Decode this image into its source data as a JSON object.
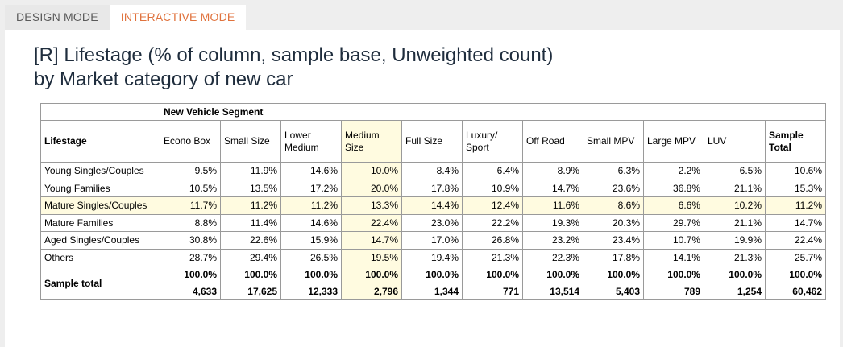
{
  "tabs": [
    {
      "label": "DESIGN MODE",
      "active": false
    },
    {
      "label": "INTERACTIVE MODE",
      "active": true
    }
  ],
  "title": {
    "line1": "[R] Lifestage (% of column, sample base, Unweighted count)",
    "line2": "by Market category of new car"
  },
  "colors": {
    "active_tab": "#e0723c",
    "highlight": "#fffbe0",
    "title": "#1f2d3d"
  },
  "table": {
    "group_header": "New Vehicle Segment",
    "row_header": "Lifestage",
    "columns": [
      "Econo Box",
      "Small Size",
      "Lower Medium",
      "Medium Size",
      "Full Size",
      "Luxury/ Sport",
      "Off Road",
      "Small MPV",
      "Large MPV",
      "LUV",
      "Sample Total"
    ],
    "rows": [
      {
        "label": "Young Singles/Couples",
        "values": [
          "9.5%",
          "11.9%",
          "14.6%",
          "10.0%",
          "8.4%",
          "6.4%",
          "8.9%",
          "6.3%",
          "2.2%",
          "6.5%",
          "10.6%"
        ]
      },
      {
        "label": "Young Families",
        "values": [
          "10.5%",
          "13.5%",
          "17.2%",
          "20.0%",
          "17.8%",
          "10.9%",
          "14.7%",
          "23.6%",
          "36.8%",
          "21.1%",
          "15.3%"
        ]
      },
      {
        "label": "Mature Singles/Couples",
        "values": [
          "11.7%",
          "11.2%",
          "11.2%",
          "13.3%",
          "14.4%",
          "12.4%",
          "11.6%",
          "8.6%",
          "6.6%",
          "10.2%",
          "11.2%"
        ]
      },
      {
        "label": "Mature Families",
        "values": [
          "8.8%",
          "11.4%",
          "14.6%",
          "22.4%",
          "23.0%",
          "22.2%",
          "19.3%",
          "20.3%",
          "29.7%",
          "21.1%",
          "14.7%"
        ]
      },
      {
        "label": "Aged Singles/Couples",
        "values": [
          "30.8%",
          "22.6%",
          "15.9%",
          "14.7%",
          "17.0%",
          "26.8%",
          "23.2%",
          "23.4%",
          "10.7%",
          "19.9%",
          "22.4%"
        ]
      },
      {
        "label": "Others",
        "values": [
          "28.7%",
          "29.4%",
          "26.5%",
          "19.5%",
          "19.4%",
          "21.3%",
          "22.3%",
          "17.8%",
          "14.1%",
          "21.3%",
          "25.7%"
        ]
      }
    ],
    "sample_total": {
      "label": "Sample total",
      "percents": [
        "100.0%",
        "100.0%",
        "100.0%",
        "100.0%",
        "100.0%",
        "100.0%",
        "100.0%",
        "100.0%",
        "100.0%",
        "100.0%",
        "100.0%"
      ],
      "counts": [
        "4,633",
        "17,625",
        "12,333",
        "2,796",
        "1,344",
        "771",
        "13,514",
        "5,403",
        "789",
        "1,254",
        "60,462"
      ]
    }
  }
}
